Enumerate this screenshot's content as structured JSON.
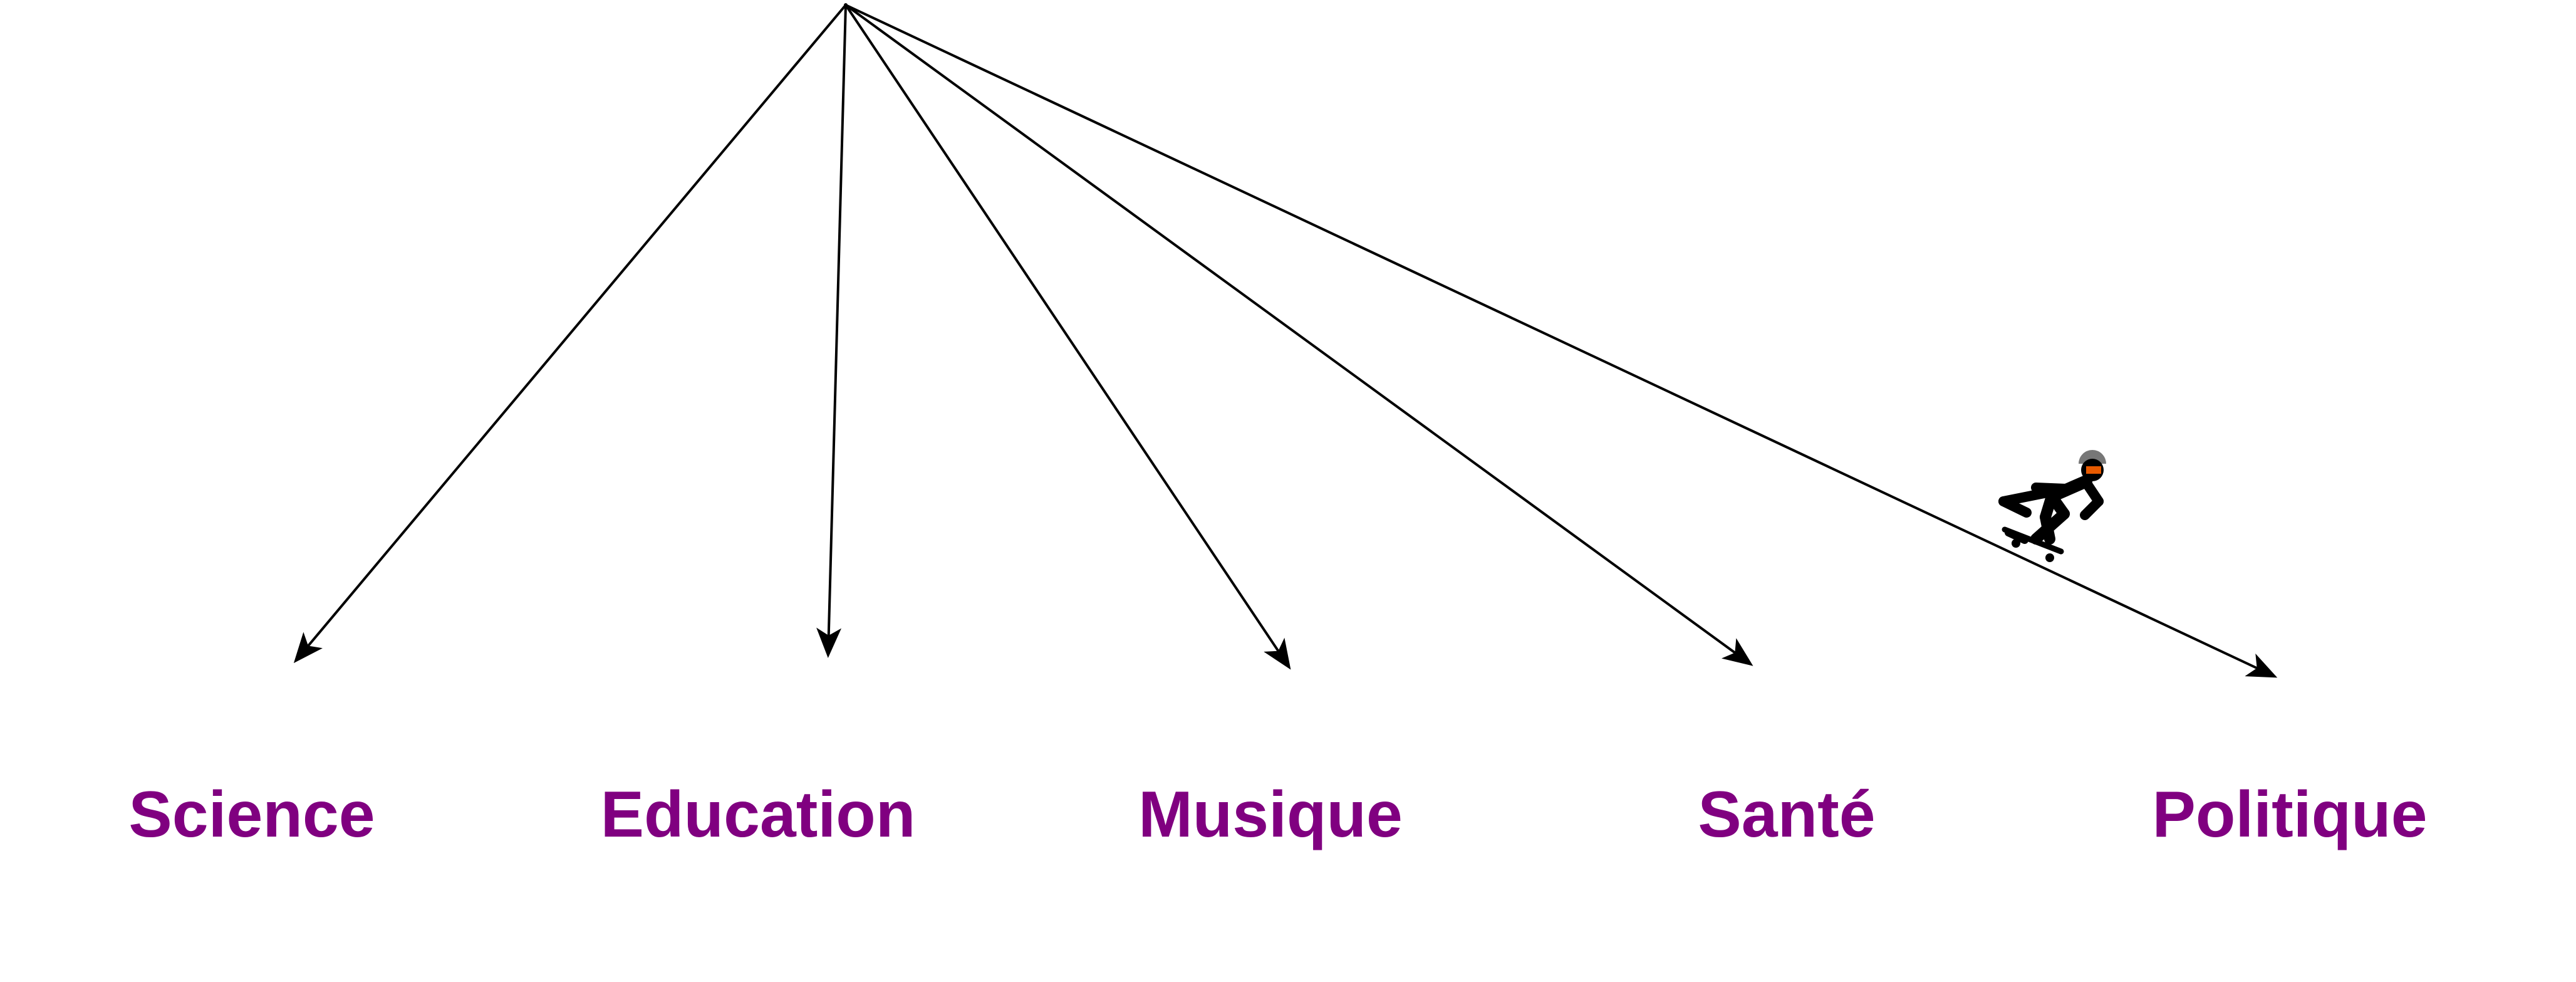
{
  "diagram": {
    "categories": [
      {
        "id": "science",
        "label": "Science"
      },
      {
        "id": "education",
        "label": "Education"
      },
      {
        "id": "musique",
        "label": "Musique"
      },
      {
        "id": "sante",
        "label": "Santé"
      },
      {
        "id": "politique",
        "label": "Politique"
      }
    ],
    "colors": {
      "label": "#800080",
      "arrow": "#000000"
    },
    "icons": [
      "skateboarder-icon"
    ]
  }
}
